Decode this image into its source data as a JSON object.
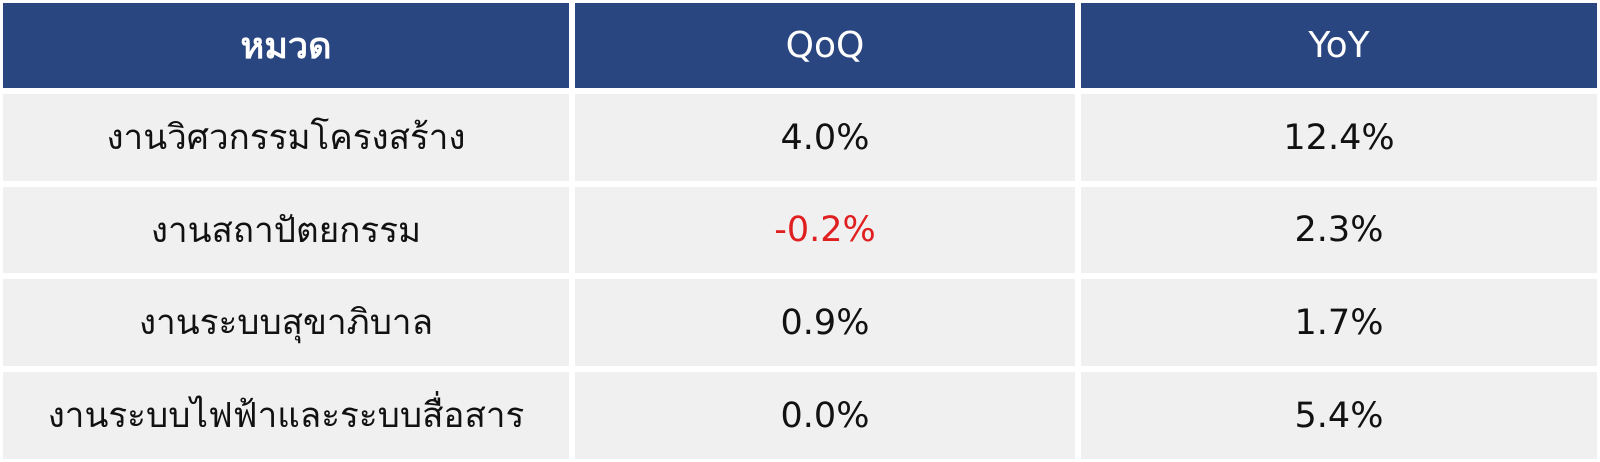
{
  "colors": {
    "header_bg": "#2a4680",
    "header_text": "#ffffff",
    "row_bg": "#f0f0f0",
    "text": "#111111",
    "negative": "#e02020"
  },
  "table": {
    "headers": [
      "หมวด",
      "QoQ",
      "YoY"
    ],
    "rows": [
      {
        "category": "งานวิศวกรรมโครงสร้าง",
        "qoq": "4.0%",
        "yoy": "12.4%"
      },
      {
        "category": "งานสถาปัตยกรรม",
        "qoq": "-0.2%",
        "yoy": "2.3%"
      },
      {
        "category": "งานระบบสุขาภิบาล",
        "qoq": "0.9%",
        "yoy": "1.7%"
      },
      {
        "category": "งานระบบไฟฟ้าและระบบสื่อสาร",
        "qoq": "0.0%",
        "yoy": "5.4%"
      }
    ]
  }
}
